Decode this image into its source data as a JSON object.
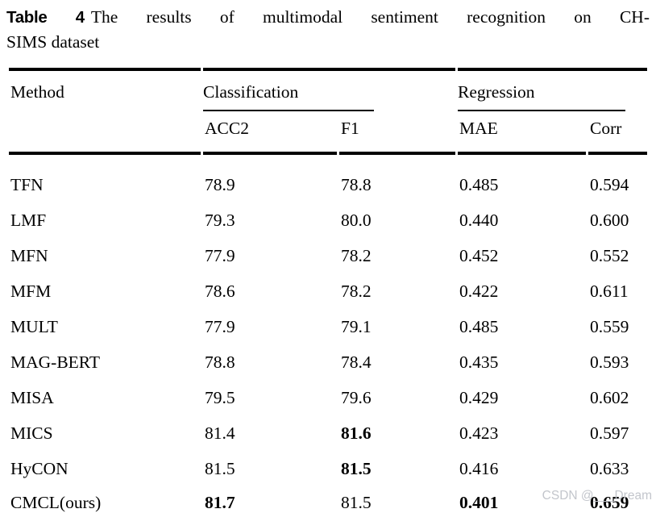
{
  "caption": {
    "label": "Table 4",
    "line1": "The results of multimodal sentiment recognition on CH-",
    "line2": "SIMS dataset"
  },
  "table": {
    "method_header": "Method",
    "groups": [
      {
        "label": "Classification",
        "columns": [
          "ACC2",
          "F1"
        ]
      },
      {
        "label": "Regression",
        "columns": [
          "MAE",
          "Corr"
        ]
      }
    ],
    "rows": [
      {
        "method": "TFN",
        "acc2": "78.9",
        "f1": "78.8",
        "mae": "0.485",
        "corr": "0.594",
        "bold": []
      },
      {
        "method": "LMF",
        "acc2": "79.3",
        "f1": "80.0",
        "mae": "0.440",
        "corr": "0.600",
        "bold": []
      },
      {
        "method": "MFN",
        "acc2": "77.9",
        "f1": "78.2",
        "mae": "0.452",
        "corr": "0.552",
        "bold": []
      },
      {
        "method": "MFM",
        "acc2": "78.6",
        "f1": "78.2",
        "mae": "0.422",
        "corr": "0.611",
        "bold": []
      },
      {
        "method": "MULT",
        "acc2": "77.9",
        "f1": "79.1",
        "mae": "0.485",
        "corr": "0.559",
        "bold": []
      },
      {
        "method": "MAG-BERT",
        "acc2": "78.8",
        "f1": "78.4",
        "mae": "0.435",
        "corr": "0.593",
        "bold": []
      },
      {
        "method": "MISA",
        "acc2": "79.5",
        "f1": "79.6",
        "mae": "0.429",
        "corr": "0.602",
        "bold": []
      },
      {
        "method": "MICS",
        "acc2": "81.4",
        "f1": "81.6",
        "mae": "0.423",
        "corr": "0.597",
        "bold": [
          "f1"
        ]
      },
      {
        "method": "HyCON",
        "acc2": "81.5",
        "f1": "81.5",
        "mae": "0.416",
        "corr": "0.633",
        "bold": [
          "f1"
        ]
      },
      {
        "method": "CMCL(ours)",
        "acc2": "81.7",
        "f1": "81.5",
        "mae": "0.401",
        "corr": "0.659",
        "bold": [
          "acc2",
          "mae",
          "corr"
        ]
      }
    ]
  },
  "watermark": {
    "text": "CSDN @___Dream",
    "color": "#c3c6cc"
  }
}
